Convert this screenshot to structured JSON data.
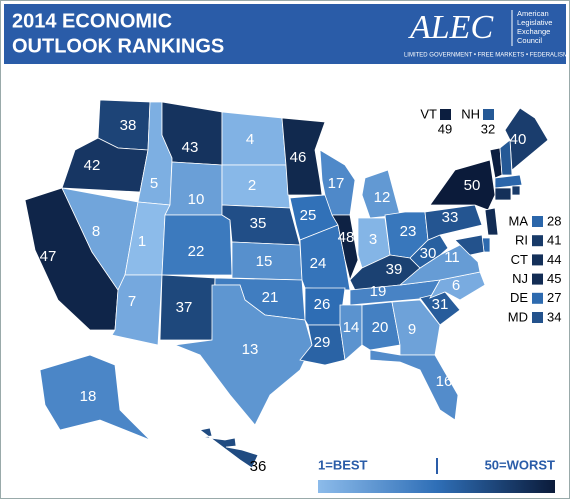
{
  "header": {
    "title_line1": "2014 ECONOMIC",
    "title_line2": "OUTLOOK RANKINGS",
    "logo": "ALEC",
    "logo_name": [
      "American",
      "Legislative",
      "Exchange",
      "Council"
    ],
    "tagline": "LIMITED GOVERNMENT • FREE MARKETS • FEDERALISM"
  },
  "states": [
    {
      "rank": 38
    },
    {
      "rank": 42
    },
    {
      "rank": 47
    },
    {
      "rank": 5
    },
    {
      "rank": 8
    },
    {
      "rank": 1
    },
    {
      "rank": 7
    },
    {
      "rank": 43
    },
    {
      "rank": 10
    },
    {
      "rank": 22
    },
    {
      "rank": 37
    },
    {
      "rank": 4
    },
    {
      "rank": 2
    },
    {
      "rank": 35
    },
    {
      "rank": 15
    },
    {
      "rank": 21
    },
    {
      "rank": 13
    },
    {
      "rank": 46
    },
    {
      "rank": 25
    },
    {
      "rank": 24
    },
    {
      "rank": 26
    },
    {
      "rank": 29
    },
    {
      "rank": 17
    },
    {
      "rank": 48
    },
    {
      "rank": 12
    },
    {
      "rank": 3
    },
    {
      "rank": 23
    },
    {
      "rank": 39
    },
    {
      "rank": 19
    },
    {
      "rank": 14
    },
    {
      "rank": 20
    },
    {
      "rank": 9
    },
    {
      "rank": 16
    },
    {
      "rank": 31
    },
    {
      "rank": 6
    },
    {
      "rank": 11
    },
    {
      "rank": 30
    },
    {
      "rank": 33
    },
    {
      "rank": 50
    },
    {
      "rank": 40
    },
    {
      "rank": 18
    },
    {
      "rank": 36
    },
    {
      "abbr": "VT",
      "rank": 49
    },
    {
      "abbr": "NH",
      "rank": 32
    },
    {
      "abbr": "MA",
      "rank": 28
    },
    {
      "abbr": "RI",
      "rank": 41
    },
    {
      "abbr": "CT",
      "rank": 44
    },
    {
      "abbr": "NJ",
      "rank": 45
    },
    {
      "abbr": "DE",
      "rank": 27
    },
    {
      "abbr": "MD",
      "rank": 34
    }
  ],
  "legend": {
    "best": "1=BEST",
    "worst": "50=WORST"
  }
}
